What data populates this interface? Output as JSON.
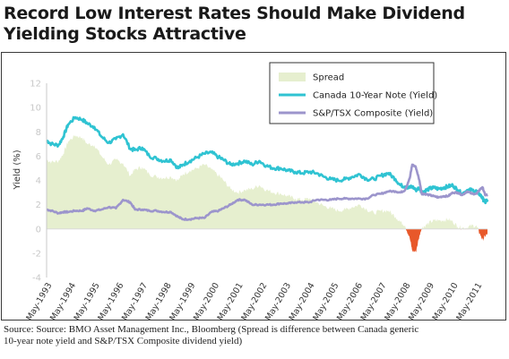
{
  "title_line1": "Record Low Interest Rates Should Make Dividend",
  "title_line2": "Yielding Stocks Attractive",
  "source_line1": "Source: Source: BMO Asset Management Inc., Bloomberg  (Spread is difference between Canada generic",
  "source_line2": "10-year note yield and S&P/TSX Composite dividend yield)",
  "colors": {
    "spread": "#e6efcf",
    "spread_negative": "#e8582a",
    "canada": "#2fc3d2",
    "tsx": "#9c95cc"
  },
  "chart_data": {
    "type": "line",
    "ylabel": "Yield (%)",
    "ylim": [
      -4,
      12
    ],
    "yticks": [
      -4,
      -2,
      0,
      2,
      4,
      6,
      8,
      10,
      12
    ],
    "x_tick_labels": [
      "May-1993",
      "May-1994",
      "May-1995",
      "May-1996",
      "May-1997",
      "May-1998",
      "May-1999",
      "May-2000",
      "May-2001",
      "May-2002",
      "May-2003",
      "May-2004",
      "May-2005",
      "May-2006",
      "May-2007",
      "May-2008",
      "May-2009",
      "May-2010",
      "May-2011"
    ],
    "x_tick_values": [
      1993.37,
      1994.37,
      1995.37,
      1996.37,
      1997.37,
      1998.37,
      1999.37,
      2000.37,
      2001.37,
      2002.37,
      2003.37,
      2004.37,
      2005.37,
      2006.37,
      2007.37,
      2008.37,
      2009.37,
      2010.37,
      2011.37
    ],
    "xlim": [
      1993.3,
      2011.75
    ],
    "legend_position": "top-right",
    "grid": false,
    "series": [
      {
        "name": "Spread",
        "style": "area",
        "x": [
          1993.3,
          1993.5,
          1993.8,
          1994.0,
          1994.2,
          1994.5,
          1994.8,
          1995.0,
          1995.3,
          1995.6,
          1995.9,
          1996.2,
          1996.5,
          1996.8,
          1997.0,
          1997.3,
          1997.6,
          1997.9,
          1998.2,
          1998.5,
          1998.8,
          1999.0,
          1999.3,
          1999.6,
          1999.9,
          2000.2,
          2000.5,
          2000.7,
          2001.0,
          2001.3,
          2001.6,
          2001.9,
          2002.2,
          2002.5,
          2002.8,
          2003.1,
          2003.4,
          2003.7,
          2004.0,
          2004.3,
          2004.6,
          2004.9,
          2005.2,
          2005.5,
          2005.8,
          2006.1,
          2006.4,
          2006.7,
          2007.0,
          2007.3,
          2007.6,
          2007.9,
          2008.1,
          2008.3,
          2008.5,
          2008.6,
          2008.75,
          2008.9,
          2009.0,
          2009.1,
          2009.3,
          2009.5,
          2009.7,
          2009.9,
          2010.1,
          2010.3,
          2010.5,
          2010.7,
          2010.9,
          2011.1,
          2011.3,
          2011.45,
          2011.55,
          2011.65,
          2011.75
        ],
        "values": [
          5.7,
          5.5,
          5.6,
          6.2,
          7.2,
          7.7,
          7.5,
          7.0,
          6.9,
          6.0,
          5.3,
          5.7,
          5.4,
          4.4,
          4.9,
          5.1,
          4.5,
          4.3,
          4.2,
          4.3,
          4.0,
          4.5,
          4.8,
          5.0,
          5.3,
          4.9,
          4.4,
          4.0,
          3.3,
          3.0,
          3.2,
          3.3,
          3.6,
          3.2,
          3.0,
          2.9,
          2.7,
          2.5,
          2.4,
          2.5,
          2.2,
          1.9,
          1.7,
          1.5,
          1.6,
          1.8,
          2.0,
          1.6,
          1.3,
          1.5,
          1.5,
          1.0,
          0.6,
          0.3,
          -0.8,
          -1.8,
          -1.9,
          -0.6,
          0.1,
          0.2,
          0.5,
          0.7,
          0.7,
          0.7,
          0.8,
          0.6,
          0.2,
          0.1,
          0.1,
          0.3,
          0.2,
          -0.5,
          -0.9,
          -0.6,
          -0.4
        ]
      },
      {
        "name": "Canada 10-Year Note (Yield)",
        "style": "line",
        "x": [
          1993.3,
          1993.5,
          1993.8,
          1994.0,
          1994.2,
          1994.5,
          1994.8,
          1995.0,
          1995.3,
          1995.6,
          1995.9,
          1996.2,
          1996.5,
          1996.8,
          1997.0,
          1997.3,
          1997.6,
          1997.9,
          1998.2,
          1998.5,
          1998.8,
          1999.0,
          1999.3,
          1999.6,
          1999.9,
          2000.2,
          2000.5,
          2000.7,
          2001.0,
          2001.3,
          2001.6,
          2001.9,
          2002.2,
          2002.5,
          2002.8,
          2003.1,
          2003.4,
          2003.7,
          2004.0,
          2004.3,
          2004.6,
          2004.9,
          2005.2,
          2005.5,
          2005.8,
          2006.1,
          2006.4,
          2006.7,
          2007.0,
          2007.3,
          2007.6,
          2007.9,
          2008.1,
          2008.3,
          2008.5,
          2008.6,
          2008.75,
          2008.9,
          2009.0,
          2009.1,
          2009.3,
          2009.5,
          2009.7,
          2009.9,
          2010.1,
          2010.3,
          2010.5,
          2010.7,
          2010.9,
          2011.1,
          2011.3,
          2011.45,
          2011.55,
          2011.65,
          2011.75
        ],
        "values": [
          7.3,
          7.0,
          6.9,
          7.6,
          8.6,
          9.2,
          9.0,
          8.7,
          8.4,
          7.6,
          7.1,
          7.4,
          7.8,
          6.6,
          6.5,
          6.7,
          6.0,
          5.8,
          5.6,
          5.7,
          5.0,
          5.3,
          5.6,
          5.9,
          6.2,
          6.3,
          5.9,
          5.7,
          5.3,
          5.4,
          5.6,
          5.3,
          5.6,
          5.2,
          5.0,
          5.0,
          4.8,
          4.7,
          4.6,
          4.7,
          4.6,
          4.3,
          4.1,
          4.0,
          4.1,
          4.3,
          4.5,
          4.1,
          4.1,
          4.4,
          4.6,
          4.1,
          3.6,
          3.5,
          3.4,
          3.5,
          3.2,
          3.4,
          3.0,
          3.1,
          3.3,
          3.4,
          3.3,
          3.4,
          3.5,
          3.6,
          3.2,
          2.9,
          3.2,
          3.2,
          3.1,
          2.8,
          2.5,
          2.2,
          2.4
        ]
      },
      {
        "name": "S&P/TSX Composite (Yield)",
        "style": "line",
        "x": [
          1993.3,
          1993.5,
          1993.8,
          1994.0,
          1994.2,
          1994.5,
          1994.8,
          1995.0,
          1995.3,
          1995.6,
          1995.9,
          1996.2,
          1996.5,
          1996.8,
          1997.0,
          1997.3,
          1997.6,
          1997.9,
          1998.2,
          1998.5,
          1998.8,
          1999.0,
          1999.3,
          1999.6,
          1999.9,
          2000.2,
          2000.5,
          2000.7,
          2001.0,
          2001.3,
          2001.6,
          2001.9,
          2002.2,
          2002.5,
          2002.8,
          2003.1,
          2003.4,
          2003.7,
          2004.0,
          2004.3,
          2004.6,
          2004.9,
          2005.2,
          2005.5,
          2005.8,
          2006.1,
          2006.4,
          2006.7,
          2007.0,
          2007.3,
          2007.6,
          2007.9,
          2008.1,
          2008.3,
          2008.5,
          2008.6,
          2008.75,
          2008.9,
          2009.0,
          2009.1,
          2009.3,
          2009.5,
          2009.7,
          2009.9,
          2010.1,
          2010.3,
          2010.5,
          2010.7,
          2010.9,
          2011.1,
          2011.3,
          2011.45,
          2011.55,
          2011.65,
          2011.75
        ],
        "values": [
          1.6,
          1.5,
          1.3,
          1.4,
          1.4,
          1.5,
          1.5,
          1.7,
          1.5,
          1.6,
          1.8,
          1.7,
          2.4,
          2.2,
          1.6,
          1.6,
          1.5,
          1.5,
          1.4,
          1.4,
          1.0,
          0.8,
          0.8,
          0.9,
          0.9,
          1.4,
          1.5,
          1.7,
          2.0,
          2.4,
          2.4,
          2.0,
          2.0,
          2.0,
          2.0,
          2.1,
          2.1,
          2.2,
          2.2,
          2.2,
          2.4,
          2.4,
          2.4,
          2.5,
          2.5,
          2.5,
          2.5,
          2.5,
          2.8,
          2.9,
          3.1,
          3.1,
          3.0,
          3.2,
          4.2,
          5.3,
          5.1,
          4.0,
          2.9,
          2.9,
          2.8,
          2.7,
          2.6,
          2.7,
          2.7,
          3.0,
          3.0,
          2.8,
          3.1,
          2.9,
          2.9,
          3.3,
          3.4,
          2.8,
          2.8
        ]
      }
    ]
  }
}
